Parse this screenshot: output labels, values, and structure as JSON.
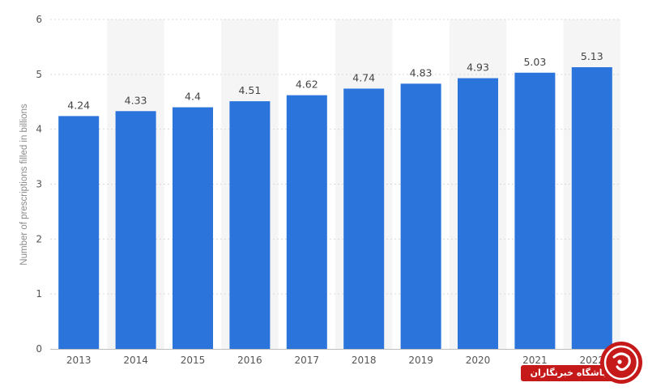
{
  "chart_data": {
    "type": "bar",
    "categories": [
      "2013",
      "2014",
      "2015",
      "2016",
      "2017",
      "2018",
      "2019",
      "2020",
      "2021",
      "2022"
    ],
    "values": [
      4.24,
      4.33,
      4.4,
      4.51,
      4.62,
      4.74,
      4.83,
      4.93,
      5.03,
      5.13
    ],
    "value_labels": [
      "4.24",
      "4.33",
      "4.4",
      "4.51",
      "4.62",
      "4.74",
      "4.83",
      "4.93",
      "5.03",
      "5.13"
    ],
    "ylabel": "Number of prescriptions filled in billions",
    "ylim": [
      0,
      6
    ],
    "yticks": [
      "0",
      "1",
      "2",
      "3",
      "4",
      "5",
      "6"
    ],
    "grid": "horizontal dashed",
    "bar_color": "#2a74db",
    "column_band_color": "#f5f5f5"
  },
  "watermark": {
    "text": "باشگاه خبرنگاران",
    "bar_color": "#c61a1a",
    "logo_color": "#c61a1a"
  }
}
